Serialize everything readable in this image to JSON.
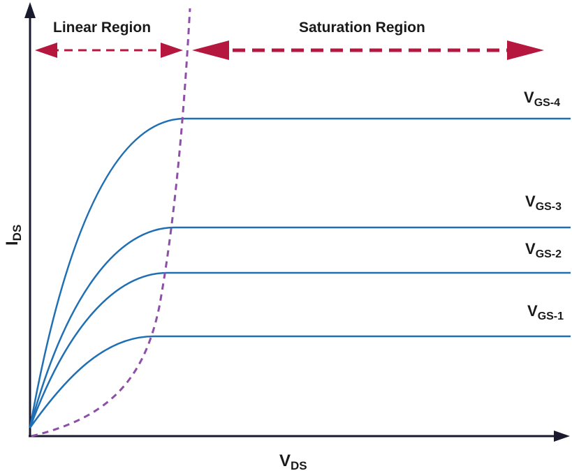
{
  "regions": {
    "linear_label": "Linear Region",
    "saturation_label": "Saturation Region"
  },
  "axes": {
    "x_label_main": "V",
    "x_label_sub": "DS",
    "y_label_main": "I",
    "y_label_sub": "DS"
  },
  "curves": [
    {
      "label_main": "V",
      "label_sub": "GS-4",
      "level": 1.0
    },
    {
      "label_main": "V",
      "label_sub": "GS-3",
      "level": 0.66
    },
    {
      "label_main": "V",
      "label_sub": "GS-2",
      "level": 0.51
    },
    {
      "label_main": "V",
      "label_sub": "GS-1",
      "level": 0.31
    }
  ],
  "colors": {
    "axis": "#1a1a2e",
    "curve": "#1f6fb5",
    "boundary": "#8e4fa6",
    "arrow": "#b5173f",
    "text": "#1a1a1a"
  }
}
